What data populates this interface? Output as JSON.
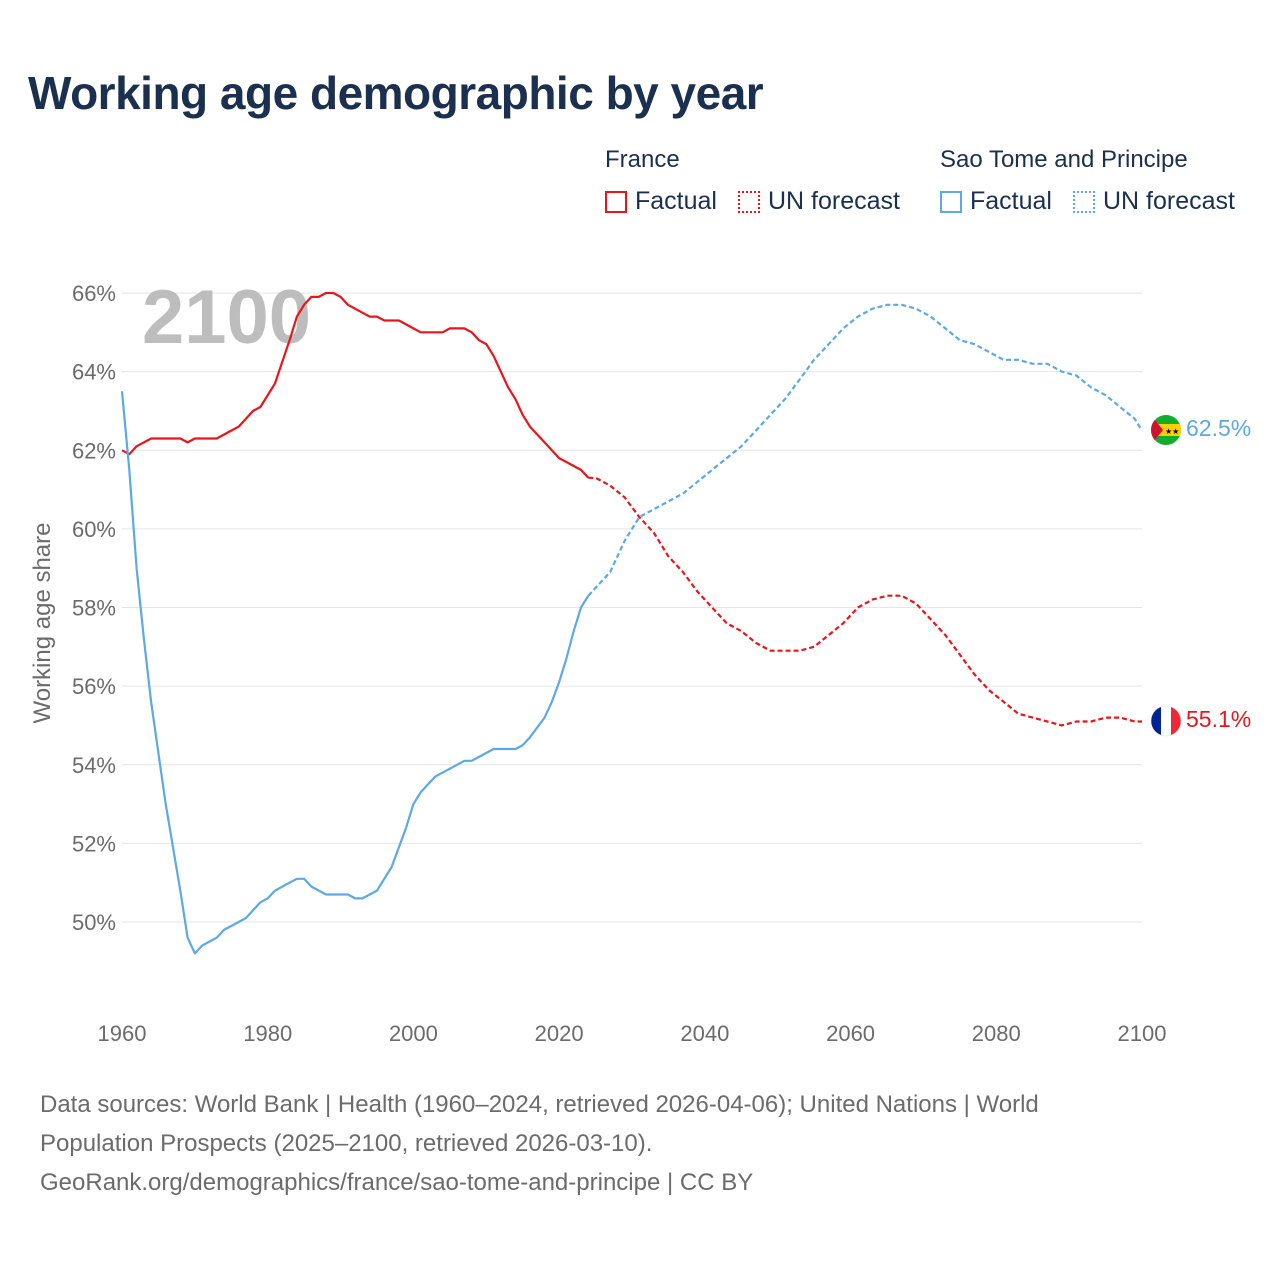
{
  "title": "Working age demographic by year",
  "year_watermark": "2100",
  "legend": {
    "groups": [
      {
        "name": "France",
        "factual_label": "Factual",
        "forecast_label": "UN forecast",
        "color": "#e8161b"
      },
      {
        "name": "Sao Tome and Principe",
        "factual_label": "Factual",
        "forecast_label": "UN forecast",
        "color": "#5da8e6"
      }
    ]
  },
  "footer": {
    "line1": "Data sources: World Bank | Health (1960–2024, retrieved 2026-04-06); United Nations | World",
    "line2": "Population Prospects (2025–2100, retrieved 2026-03-10).",
    "line3": "GeoRank.org/demographics/france/sao-tome-and-principe | CC BY"
  },
  "chart_data": {
    "type": "line",
    "ylabel": "Working age share",
    "xlabel": "",
    "xlim": [
      1960,
      2100
    ],
    "ylim": [
      48,
      66.5
    ],
    "x_ticks": [
      1960,
      1980,
      2000,
      2020,
      2040,
      2060,
      2080,
      2100
    ],
    "y_ticks": [
      50,
      52,
      54,
      56,
      58,
      60,
      62,
      64,
      66
    ],
    "y_tick_labels": [
      "50%",
      "52%",
      "54%",
      "56%",
      "58%",
      "60%",
      "62%",
      "64%",
      "66%"
    ],
    "grid": "horizontal",
    "factual_end_year": 2024,
    "series": [
      {
        "name": "France",
        "color": "#e8161b",
        "end_label": "55.1%",
        "points": [
          [
            1960,
            62.0
          ],
          [
            1961,
            61.9
          ],
          [
            1962,
            62.1
          ],
          [
            1964,
            62.3
          ],
          [
            1966,
            62.3
          ],
          [
            1968,
            62.3
          ],
          [
            1969,
            62.2
          ],
          [
            1970,
            62.3
          ],
          [
            1972,
            62.3
          ],
          [
            1973,
            62.3
          ],
          [
            1975,
            62.5
          ],
          [
            1976,
            62.6
          ],
          [
            1978,
            63.0
          ],
          [
            1979,
            63.1
          ],
          [
            1981,
            63.7
          ],
          [
            1983,
            64.8
          ],
          [
            1984,
            65.4
          ],
          [
            1985,
            65.7
          ],
          [
            1986,
            65.9
          ],
          [
            1987,
            65.9
          ],
          [
            1988,
            66.0
          ],
          [
            1989,
            66.0
          ],
          [
            1990,
            65.9
          ],
          [
            1991,
            65.7
          ],
          [
            1993,
            65.5
          ],
          [
            1994,
            65.4
          ],
          [
            1995,
            65.4
          ],
          [
            1996,
            65.3
          ],
          [
            1998,
            65.3
          ],
          [
            1999,
            65.2
          ],
          [
            2000,
            65.1
          ],
          [
            2001,
            65.0
          ],
          [
            2004,
            65.0
          ],
          [
            2005,
            65.1
          ],
          [
            2007,
            65.1
          ],
          [
            2008,
            65.0
          ],
          [
            2009,
            64.8
          ],
          [
            2010,
            64.7
          ],
          [
            2011,
            64.4
          ],
          [
            2013,
            63.6
          ],
          [
            2014,
            63.3
          ],
          [
            2015,
            62.9
          ],
          [
            2016,
            62.6
          ],
          [
            2018,
            62.2
          ],
          [
            2020,
            61.8
          ],
          [
            2021,
            61.7
          ],
          [
            2022,
            61.6
          ],
          [
            2023,
            61.5
          ],
          [
            2024,
            61.3
          ],
          [
            2025,
            61.3
          ],
          [
            2027,
            61.1
          ],
          [
            2029,
            60.8
          ],
          [
            2031,
            60.3
          ],
          [
            2033,
            59.9
          ],
          [
            2035,
            59.3
          ],
          [
            2037,
            58.9
          ],
          [
            2039,
            58.4
          ],
          [
            2041,
            58.0
          ],
          [
            2043,
            57.6
          ],
          [
            2045,
            57.4
          ],
          [
            2047,
            57.1
          ],
          [
            2049,
            56.9
          ],
          [
            2051,
            56.9
          ],
          [
            2053,
            56.9
          ],
          [
            2055,
            57.0
          ],
          [
            2057,
            57.3
          ],
          [
            2059,
            57.6
          ],
          [
            2061,
            58.0
          ],
          [
            2063,
            58.2
          ],
          [
            2065,
            58.3
          ],
          [
            2067,
            58.3
          ],
          [
            2069,
            58.1
          ],
          [
            2071,
            57.7
          ],
          [
            2073,
            57.3
          ],
          [
            2075,
            56.8
          ],
          [
            2077,
            56.3
          ],
          [
            2079,
            55.9
          ],
          [
            2081,
            55.6
          ],
          [
            2083,
            55.3
          ],
          [
            2085,
            55.2
          ],
          [
            2087,
            55.1
          ],
          [
            2089,
            55.0
          ],
          [
            2091,
            55.1
          ],
          [
            2093,
            55.1
          ],
          [
            2095,
            55.2
          ],
          [
            2097,
            55.2
          ],
          [
            2099,
            55.1
          ],
          [
            2100,
            55.1
          ]
        ]
      },
      {
        "name": "Sao Tome and Principe",
        "color": "#5da8e6",
        "end_label": "62.5%",
        "points": [
          [
            1960,
            63.5
          ],
          [
            1961,
            61.5
          ],
          [
            1962,
            59.0
          ],
          [
            1963,
            57.2
          ],
          [
            1964,
            55.6
          ],
          [
            1965,
            54.3
          ],
          [
            1966,
            53.0
          ],
          [
            1967,
            51.9
          ],
          [
            1968,
            50.8
          ],
          [
            1969,
            49.6
          ],
          [
            1970,
            49.2
          ],
          [
            1971,
            49.4
          ],
          [
            1973,
            49.6
          ],
          [
            1974,
            49.8
          ],
          [
            1976,
            50.0
          ],
          [
            1977,
            50.1
          ],
          [
            1979,
            50.5
          ],
          [
            1980,
            50.6
          ],
          [
            1981,
            50.8
          ],
          [
            1983,
            51.0
          ],
          [
            1984,
            51.1
          ],
          [
            1985,
            51.1
          ],
          [
            1986,
            50.9
          ],
          [
            1988,
            50.7
          ],
          [
            1989,
            50.7
          ],
          [
            1991,
            50.7
          ],
          [
            1992,
            50.6
          ],
          [
            1993,
            50.6
          ],
          [
            1995,
            50.8
          ],
          [
            1997,
            51.4
          ],
          [
            1999,
            52.4
          ],
          [
            2000,
            53.0
          ],
          [
            2001,
            53.3
          ],
          [
            2003,
            53.7
          ],
          [
            2005,
            53.9
          ],
          [
            2007,
            54.1
          ],
          [
            2008,
            54.1
          ],
          [
            2009,
            54.2
          ],
          [
            2011,
            54.4
          ],
          [
            2013,
            54.4
          ],
          [
            2014,
            54.4
          ],
          [
            2015,
            54.5
          ],
          [
            2016,
            54.7
          ],
          [
            2018,
            55.2
          ],
          [
            2019,
            55.6
          ],
          [
            2020,
            56.1
          ],
          [
            2021,
            56.7
          ],
          [
            2022,
            57.4
          ],
          [
            2023,
            58.0
          ],
          [
            2024,
            58.3
          ],
          [
            2025,
            58.5
          ],
          [
            2027,
            58.9
          ],
          [
            2029,
            59.7
          ],
          [
            2031,
            60.3
          ],
          [
            2033,
            60.5
          ],
          [
            2035,
            60.7
          ],
          [
            2037,
            60.9
          ],
          [
            2039,
            61.2
          ],
          [
            2041,
            61.5
          ],
          [
            2043,
            61.8
          ],
          [
            2045,
            62.1
          ],
          [
            2047,
            62.5
          ],
          [
            2049,
            62.9
          ],
          [
            2051,
            63.3
          ],
          [
            2053,
            63.8
          ],
          [
            2055,
            64.3
          ],
          [
            2057,
            64.7
          ],
          [
            2059,
            65.1
          ],
          [
            2061,
            65.4
          ],
          [
            2063,
            65.6
          ],
          [
            2065,
            65.7
          ],
          [
            2067,
            65.7
          ],
          [
            2069,
            65.6
          ],
          [
            2071,
            65.4
          ],
          [
            2073,
            65.1
          ],
          [
            2075,
            64.8
          ],
          [
            2077,
            64.7
          ],
          [
            2079,
            64.5
          ],
          [
            2081,
            64.3
          ],
          [
            2083,
            64.3
          ],
          [
            2085,
            64.2
          ],
          [
            2087,
            64.2
          ],
          [
            2089,
            64.0
          ],
          [
            2091,
            63.9
          ],
          [
            2093,
            63.6
          ],
          [
            2095,
            63.4
          ],
          [
            2097,
            63.1
          ],
          [
            2099,
            62.8
          ],
          [
            2100,
            62.5
          ]
        ]
      }
    ]
  }
}
